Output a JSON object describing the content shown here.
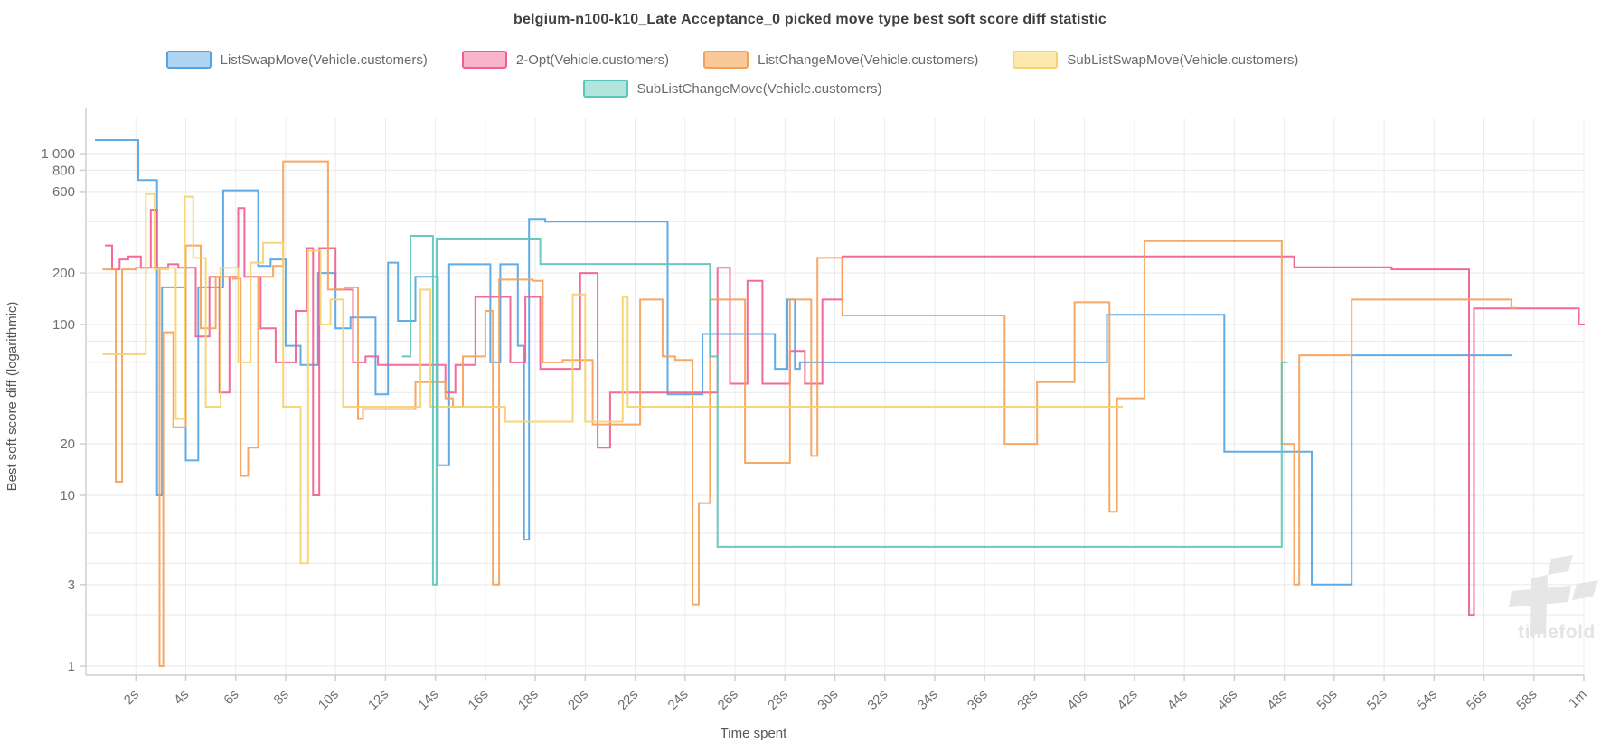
{
  "chart_data": {
    "type": "line",
    "subtype": "step-after",
    "title": "belgium-n100-k10_Late Acceptance_0 picked move type best soft score diff statistic",
    "xlabel": "Time spent",
    "ylabel": "Best soft score diff (logarithmic)",
    "x_unit": "seconds",
    "xlim": [
      0,
      60
    ],
    "y_scale": "log",
    "ylim": [
      1,
      1650
    ],
    "grid": true,
    "legend_position": "top",
    "watermark": "timefold",
    "x_ticks": [
      {
        "value": 2,
        "label": "2s"
      },
      {
        "value": 4,
        "label": "4s"
      },
      {
        "value": 6,
        "label": "6s"
      },
      {
        "value": 8,
        "label": "8s"
      },
      {
        "value": 10,
        "label": "10s"
      },
      {
        "value": 12,
        "label": "12s"
      },
      {
        "value": 14,
        "label": "14s"
      },
      {
        "value": 16,
        "label": "16s"
      },
      {
        "value": 18,
        "label": "18s"
      },
      {
        "value": 20,
        "label": "20s"
      },
      {
        "value": 22,
        "label": "22s"
      },
      {
        "value": 24,
        "label": "24s"
      },
      {
        "value": 26,
        "label": "26s"
      },
      {
        "value": 28,
        "label": "28s"
      },
      {
        "value": 30,
        "label": "30s"
      },
      {
        "value": 32,
        "label": "32s"
      },
      {
        "value": 34,
        "label": "34s"
      },
      {
        "value": 36,
        "label": "36s"
      },
      {
        "value": 38,
        "label": "38s"
      },
      {
        "value": 40,
        "label": "40s"
      },
      {
        "value": 42,
        "label": "42s"
      },
      {
        "value": 44,
        "label": "44s"
      },
      {
        "value": 46,
        "label": "46s"
      },
      {
        "value": 48,
        "label": "48s"
      },
      {
        "value": 50,
        "label": "50s"
      },
      {
        "value": 52,
        "label": "52s"
      },
      {
        "value": 54,
        "label": "54s"
      },
      {
        "value": 56,
        "label": "56s"
      },
      {
        "value": 58,
        "label": "58s"
      },
      {
        "value": 60,
        "label": "1m"
      }
    ],
    "y_gridlines": [
      1,
      2,
      3,
      4,
      6,
      8,
      10,
      20,
      40,
      60,
      80,
      100,
      200,
      400,
      600,
      800,
      1000
    ],
    "y_tick_labels": [
      {
        "value": 1,
        "label": "1"
      },
      {
        "value": 3,
        "label": "3"
      },
      {
        "value": 10,
        "label": "10"
      },
      {
        "value": 20,
        "label": "20"
      },
      {
        "value": 100,
        "label": "100"
      },
      {
        "value": 200,
        "label": "200"
      },
      {
        "value": 600,
        "label": "600"
      },
      {
        "value": 800,
        "label": "800"
      },
      {
        "value": 1000,
        "label": "1 000"
      }
    ],
    "legend_rows": [
      [
        "ListSwapMove(Vehicle.customers)",
        "2-Opt(Vehicle.customers)",
        "ListChangeMove(Vehicle.customers)",
        "SubListSwapMove(Vehicle.customers)"
      ],
      [
        "SubListChangeMove(Vehicle.customers)"
      ]
    ],
    "series": [
      {
        "name": "list-swap-move",
        "label": "ListSwapMove(Vehicle.customers)",
        "line_color": "#54a4e4",
        "swatch_fill": "#aed6f4",
        "points": [
          [
            0.4,
            1200
          ],
          [
            2.1,
            700
          ],
          [
            2.85,
            10
          ],
          [
            3.05,
            165
          ],
          [
            4.0,
            16
          ],
          [
            4.5,
            165
          ],
          [
            5.5,
            610
          ],
          [
            6.9,
            220
          ],
          [
            7.4,
            240
          ],
          [
            8.0,
            75
          ],
          [
            8.6,
            58
          ],
          [
            9.3,
            200
          ],
          [
            10.0,
            95
          ],
          [
            10.6,
            110
          ],
          [
            11.6,
            39
          ],
          [
            12.1,
            230
          ],
          [
            12.5,
            105
          ],
          [
            13.2,
            190
          ],
          [
            14.1,
            15
          ],
          [
            14.55,
            225
          ],
          [
            16.2,
            60
          ],
          [
            16.6,
            225
          ],
          [
            17.3,
            75
          ],
          [
            17.55,
            5.5
          ],
          [
            17.75,
            415
          ],
          [
            18.4,
            400
          ],
          [
            23.3,
            39
          ],
          [
            24.7,
            88
          ],
          [
            27.6,
            55
          ],
          [
            28.1,
            140
          ],
          [
            28.4,
            55
          ],
          [
            28.6,
            60
          ],
          [
            40.9,
            114
          ],
          [
            45.6,
            18
          ],
          [
            49.1,
            3
          ],
          [
            50.7,
            66
          ],
          [
            57.1,
            66
          ]
        ]
      },
      {
        "name": "two-opt",
        "label": "2-Opt(Vehicle.customers)",
        "line_color": "#f0608f",
        "swatch_fill": "#f9b4cb",
        "points": [
          [
            0.8,
            290
          ],
          [
            1.05,
            210
          ],
          [
            1.35,
            240
          ],
          [
            1.7,
            250
          ],
          [
            2.2,
            215
          ],
          [
            2.6,
            470
          ],
          [
            2.85,
            215
          ],
          [
            3.3,
            225
          ],
          [
            3.7,
            215
          ],
          [
            4.4,
            85
          ],
          [
            4.95,
            190
          ],
          [
            5.35,
            40
          ],
          [
            5.75,
            190
          ],
          [
            6.1,
            480
          ],
          [
            6.35,
            190
          ],
          [
            7.0,
            95
          ],
          [
            7.6,
            60
          ],
          [
            8.4,
            120
          ],
          [
            8.85,
            280
          ],
          [
            9.1,
            10
          ],
          [
            9.35,
            280
          ],
          [
            10.0,
            160
          ],
          [
            10.7,
            60
          ],
          [
            11.2,
            65
          ],
          [
            11.7,
            58
          ],
          [
            14.4,
            40
          ],
          [
            14.8,
            58
          ],
          [
            15.6,
            145
          ],
          [
            17.0,
            60
          ],
          [
            17.6,
            145
          ],
          [
            18.2,
            55
          ],
          [
            19.8,
            200
          ],
          [
            20.5,
            19
          ],
          [
            21.0,
            40
          ],
          [
            25.3,
            215
          ],
          [
            25.8,
            45
          ],
          [
            26.5,
            180
          ],
          [
            27.1,
            45
          ],
          [
            28.2,
            70
          ],
          [
            28.8,
            45
          ],
          [
            29.5,
            140
          ],
          [
            30.3,
            250
          ],
          [
            48.4,
            216
          ],
          [
            52.3,
            210
          ],
          [
            55.4,
            2
          ],
          [
            55.6,
            124
          ],
          [
            59.8,
            100
          ],
          [
            60,
            100
          ]
        ]
      },
      {
        "name": "list-change-move",
        "label": "ListChangeMove(Vehicle.customers)",
        "line_color": "#f5a159",
        "swatch_fill": "#f9c998",
        "points": [
          [
            0.7,
            210
          ],
          [
            1.2,
            12
          ],
          [
            1.45,
            210
          ],
          [
            2.0,
            215
          ],
          [
            2.95,
            1
          ],
          [
            3.1,
            90
          ],
          [
            3.5,
            25
          ],
          [
            4.0,
            290
          ],
          [
            4.6,
            95
          ],
          [
            5.2,
            190
          ],
          [
            5.9,
            185
          ],
          [
            6.2,
            13
          ],
          [
            6.5,
            19
          ],
          [
            6.9,
            190
          ],
          [
            7.5,
            220
          ],
          [
            7.9,
            900
          ],
          [
            9.7,
            160
          ],
          [
            10.4,
            165
          ],
          [
            10.9,
            28
          ],
          [
            11.1,
            32
          ],
          [
            13.2,
            46
          ],
          [
            14.4,
            37
          ],
          [
            14.7,
            33
          ],
          [
            15.1,
            65
          ],
          [
            16.0,
            120
          ],
          [
            16.3,
            3
          ],
          [
            16.55,
            183
          ],
          [
            17.9,
            180
          ],
          [
            18.3,
            60
          ],
          [
            19.1,
            62
          ],
          [
            20.3,
            26
          ],
          [
            22.2,
            140
          ],
          [
            23.1,
            65
          ],
          [
            23.6,
            62
          ],
          [
            24.3,
            2.3
          ],
          [
            24.55,
            9
          ],
          [
            25.0,
            140
          ],
          [
            26.4,
            15.5
          ],
          [
            28.2,
            140
          ],
          [
            29.05,
            17
          ],
          [
            29.3,
            245
          ],
          [
            30.3,
            113
          ],
          [
            36.8,
            20
          ],
          [
            38.1,
            46
          ],
          [
            39.6,
            135
          ],
          [
            41.0,
            8
          ],
          [
            41.3,
            37
          ],
          [
            42.4,
            308
          ],
          [
            47.9,
            20
          ],
          [
            48.4,
            3
          ],
          [
            48.6,
            66
          ],
          [
            50.7,
            140
          ],
          [
            57.1,
            125
          ],
          [
            57.3,
            125
          ]
        ]
      },
      {
        "name": "sub-list-swap-move",
        "label": "SubListSwapMove(Vehicle.customers)",
        "line_color": "#f7d16e",
        "swatch_fill": "#fbe9b0",
        "points": [
          [
            0.7,
            67
          ],
          [
            2.4,
            580
          ],
          [
            2.75,
            210
          ],
          [
            3.3,
            215
          ],
          [
            3.6,
            28
          ],
          [
            3.95,
            560
          ],
          [
            4.3,
            245
          ],
          [
            4.8,
            33
          ],
          [
            5.4,
            215
          ],
          [
            6.1,
            60
          ],
          [
            6.6,
            230
          ],
          [
            7.1,
            300
          ],
          [
            7.9,
            33
          ],
          [
            8.6,
            4
          ],
          [
            8.9,
            270
          ],
          [
            9.4,
            100
          ],
          [
            9.8,
            140
          ],
          [
            10.3,
            33
          ],
          [
            13.4,
            160
          ],
          [
            13.8,
            33
          ],
          [
            16.8,
            27
          ],
          [
            19.5,
            150
          ],
          [
            20.0,
            27
          ],
          [
            21.5,
            145
          ],
          [
            21.7,
            33
          ],
          [
            41.5,
            33
          ]
        ]
      },
      {
        "name": "sub-list-change-move",
        "label": "SubListChangeMove(Vehicle.customers)",
        "line_color": "#5cc5bb",
        "swatch_fill": "#b2e3dd",
        "points": [
          [
            12.7,
            65
          ],
          [
            13.0,
            330
          ],
          [
            13.9,
            3
          ],
          [
            14.05,
            318
          ],
          [
            18.2,
            226
          ],
          [
            25.0,
            65
          ],
          [
            25.3,
            5
          ],
          [
            47.9,
            60
          ],
          [
            48.1,
            60
          ]
        ]
      }
    ]
  }
}
